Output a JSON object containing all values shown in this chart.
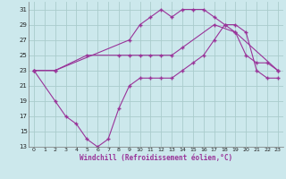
{
  "xlabel": "Windchill (Refroidissement éolien,°C)",
  "background_color": "#cce8ec",
  "grid_color": "#aacccc",
  "line_color": "#993399",
  "xlim": [
    -0.5,
    23.5
  ],
  "ylim": [
    13,
    32
  ],
  "yticks": [
    13,
    15,
    17,
    19,
    21,
    23,
    25,
    27,
    29,
    31
  ],
  "xticks": [
    0,
    1,
    2,
    3,
    4,
    5,
    6,
    7,
    8,
    9,
    10,
    11,
    12,
    13,
    14,
    15,
    16,
    17,
    18,
    19,
    20,
    21,
    22,
    23
  ],
  "series": [
    {
      "x": [
        0,
        2,
        9,
        10,
        11,
        12,
        13,
        14,
        15,
        16,
        17,
        18,
        19,
        23
      ],
      "y": [
        23,
        23,
        27,
        29,
        30,
        31,
        30,
        31,
        31,
        31,
        30,
        29,
        28,
        23
      ]
    },
    {
      "x": [
        0,
        2,
        5,
        8,
        9,
        10,
        11,
        12,
        13,
        14,
        17,
        19,
        20,
        21,
        22,
        23
      ],
      "y": [
        23,
        23,
        25,
        25,
        25,
        25,
        25,
        25,
        25,
        26,
        29,
        28,
        25,
        24,
        24,
        23
      ]
    },
    {
      "x": [
        0,
        2,
        3,
        4,
        5,
        6,
        7,
        8,
        9,
        10,
        11,
        12,
        13,
        14,
        15,
        16,
        17,
        18,
        19,
        20,
        21,
        22,
        23
      ],
      "y": [
        23,
        19,
        17,
        16,
        14,
        13,
        14,
        18,
        21,
        22,
        22,
        22,
        22,
        23,
        24,
        25,
        27,
        29,
        29,
        28,
        23,
        22,
        22
      ]
    }
  ]
}
